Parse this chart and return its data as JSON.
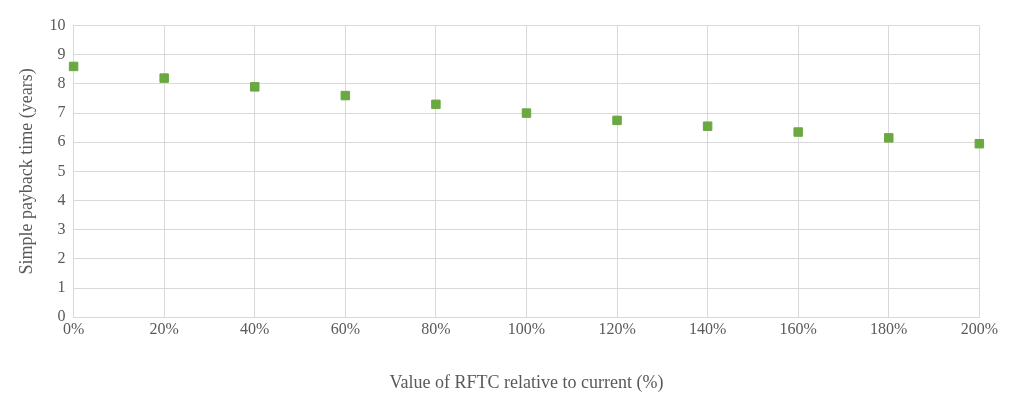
{
  "chart_data": {
    "type": "scatter",
    "xlabel": "Value of RFTC relative to current (%)",
    "ylabel": "Simple payback time (years)",
    "x": [
      0,
      20,
      40,
      60,
      80,
      100,
      120,
      140,
      160,
      180,
      200
    ],
    "series": [
      {
        "color": "#6aa842",
        "values": [
          8.6,
          8.2,
          7.9,
          7.6,
          7.3,
          7.0,
          6.75,
          6.55,
          6.35,
          6.15,
          5.95
        ]
      }
    ],
    "xlim": [
      0,
      200
    ],
    "xticks": [
      {
        "value": 0,
        "label": "0%"
      },
      {
        "value": 20,
        "label": "20%"
      },
      {
        "value": 40,
        "label": "40%"
      },
      {
        "value": 60,
        "label": "60%"
      },
      {
        "value": 80,
        "label": "80%"
      },
      {
        "value": 100,
        "label": "100%"
      },
      {
        "value": 120,
        "label": "120%"
      },
      {
        "value": 140,
        "label": "140%"
      },
      {
        "value": 160,
        "label": "160%"
      },
      {
        "value": 180,
        "label": "180%"
      },
      {
        "value": 200,
        "label": "200%"
      }
    ],
    "ylim": [
      0,
      10
    ],
    "yticks": [
      0,
      1,
      2,
      3,
      4,
      5,
      6,
      7,
      8,
      9,
      10
    ],
    "grid": true,
    "marker": "square",
    "legend": false
  }
}
